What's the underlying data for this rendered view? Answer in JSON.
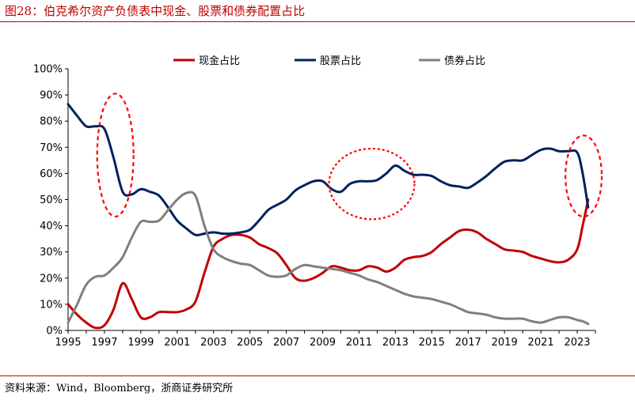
{
  "figure": {
    "title": "图28：伯克希尔资产负债表中现金、股票和债券配置占比",
    "source": "资料来源：Wind，Bloomberg，浙商证券研究所"
  },
  "chart_data": {
    "type": "line",
    "title": "伯克希尔资产负债表中现金、股票和债券配置占比",
    "xlabel": "",
    "ylabel": "",
    "xlim": [
      1995,
      2024
    ],
    "ylim": [
      0,
      100
    ],
    "y_unit": "%",
    "x_ticks": [
      1995,
      1997,
      1999,
      2001,
      2003,
      2005,
      2007,
      2009,
      2011,
      2013,
      2015,
      2017,
      2019,
      2021,
      2023
    ],
    "y_ticks": [
      0,
      10,
      20,
      30,
      40,
      50,
      60,
      70,
      80,
      90,
      100
    ],
    "y_tick_labels": [
      "0%",
      "10%",
      "20%",
      "30%",
      "40%",
      "50%",
      "60%",
      "70%",
      "80%",
      "90%",
      "100%"
    ],
    "legend_position": "top-center",
    "series": [
      {
        "name": "现金占比",
        "color": "#c00000",
        "x": [
          1995,
          1995.5,
          1996,
          1996.5,
          1997,
          1997.5,
          1998,
          1998.5,
          1999,
          1999.5,
          2000,
          2000.5,
          2001,
          2001.5,
          2002,
          2002.5,
          2003,
          2003.5,
          2004,
          2004.5,
          2005,
          2005.5,
          2006,
          2006.5,
          2007,
          2007.5,
          2008,
          2008.5,
          2009,
          2009.5,
          2010,
          2010.5,
          2011,
          2011.5,
          2012,
          2012.5,
          2013,
          2013.5,
          2014,
          2014.5,
          2015,
          2015.5,
          2016,
          2016.5,
          2017,
          2017.5,
          2018,
          2018.5,
          2019,
          2019.5,
          2020,
          2020.5,
          2021,
          2021.5,
          2022,
          2022.5,
          2023,
          2023.3,
          2023.6
        ],
        "values": [
          10,
          6,
          3,
          1,
          2,
          8,
          18,
          12,
          5,
          5,
          7,
          7,
          7,
          8,
          11,
          22,
          32,
          35,
          36.5,
          36.5,
          35.5,
          33,
          31.5,
          29.5,
          25,
          20,
          19,
          20,
          22,
          24.5,
          24,
          23,
          23,
          24.5,
          24,
          22.5,
          24,
          27,
          28,
          28.5,
          30,
          33,
          35.5,
          38,
          38.5,
          37.5,
          35,
          33,
          31,
          30.5,
          30,
          28.5,
          27.5,
          26.5,
          26,
          27,
          31,
          40,
          50
        ]
      },
      {
        "name": "股票占比",
        "color": "#002060",
        "x": [
          1995,
          1995.5,
          1996,
          1996.5,
          1997,
          1997.5,
          1998,
          1998.5,
          1999,
          1999.5,
          2000,
          2000.5,
          2001,
          2001.5,
          2002,
          2002.5,
          2003,
          2003.5,
          2004,
          2004.5,
          2005,
          2005.5,
          2006,
          2006.5,
          2007,
          2007.5,
          2008,
          2008.5,
          2009,
          2009.5,
          2010,
          2010.5,
          2011,
          2011.5,
          2012,
          2012.5,
          2013,
          2013.5,
          2014,
          2014.5,
          2015,
          2015.5,
          2016,
          2016.5,
          2017,
          2017.5,
          2018,
          2018.5,
          2019,
          2019.5,
          2020,
          2020.5,
          2021,
          2021.5,
          2022,
          2022.5,
          2023,
          2023.3,
          2023.6
        ],
        "values": [
          86.5,
          82,
          78,
          78,
          77,
          66,
          53,
          52,
          54,
          53,
          51.5,
          47,
          42,
          39,
          36.5,
          37,
          37.5,
          37,
          37,
          37.5,
          38.5,
          42,
          46,
          48,
          50,
          53.5,
          55.5,
          57,
          57,
          54,
          53,
          56,
          57,
          57,
          57.5,
          60,
          63,
          61,
          59.5,
          59.5,
          59,
          57,
          55.5,
          55,
          54.5,
          56.5,
          59,
          62,
          64.5,
          65,
          65,
          67,
          69,
          69.5,
          68.5,
          68.5,
          68,
          60,
          47
        ]
      },
      {
        "name": "债券占比",
        "color": "#7f7f7f",
        "x": [
          1995,
          1995.5,
          1996,
          1996.5,
          1997,
          1997.5,
          1998,
          1998.5,
          1999,
          1999.5,
          2000,
          2000.5,
          2001,
          2001.5,
          2002,
          2002.5,
          2003,
          2003.5,
          2004,
          2004.5,
          2005,
          2005.5,
          2006,
          2006.5,
          2007,
          2007.5,
          2008,
          2008.5,
          2009,
          2009.5,
          2010,
          2010.5,
          2011,
          2011.5,
          2012,
          2012.5,
          2013,
          2013.5,
          2014,
          2014.5,
          2015,
          2015.5,
          2016,
          2016.5,
          2017,
          2017.5,
          2018,
          2018.5,
          2019,
          2019.5,
          2020,
          2020.5,
          2021,
          2021.5,
          2022,
          2022.5,
          2023,
          2023.3,
          2023.6
        ],
        "values": [
          3,
          10,
          17.5,
          20.5,
          21,
          24,
          28,
          35.5,
          41.5,
          41.5,
          42,
          46,
          50,
          52.5,
          51.5,
          40,
          31,
          28,
          26.5,
          25.5,
          25,
          23,
          21,
          20.5,
          21,
          23.5,
          25,
          24.5,
          24,
          23.5,
          23,
          22,
          21,
          19.5,
          18.5,
          17,
          15.5,
          14,
          13,
          12.5,
          12,
          11,
          10,
          8.5,
          7,
          6.5,
          6,
          5,
          4.5,
          4.5,
          4.5,
          3.5,
          3,
          4,
          5,
          5,
          4,
          3.5,
          2.5
        ]
      }
    ],
    "annotations": [
      {
        "shape": "dashed-ellipse",
        "color": "#ff0000",
        "center_x": 1997.6,
        "center_y": 67,
        "radius_x": 1.0,
        "radius_y": 23.5
      },
      {
        "shape": "dashed-ellipse",
        "color": "#ff0000",
        "center_x": 2011.7,
        "center_y": 56,
        "radius_x": 2.35,
        "radius_y": 13.5
      },
      {
        "shape": "dashed-ellipse",
        "color": "#ff0000",
        "center_x": 2023.35,
        "center_y": 59,
        "radius_x": 1.0,
        "radius_y": 15.5
      }
    ]
  }
}
